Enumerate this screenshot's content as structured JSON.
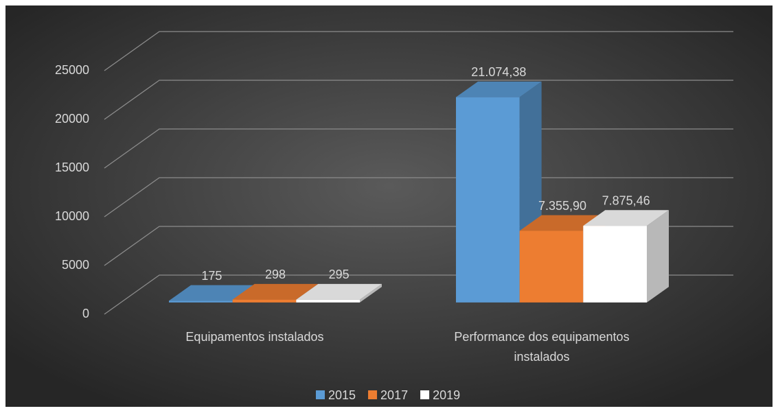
{
  "chart_data": {
    "type": "bar3d",
    "categories": [
      "Equipamentos instalados",
      "Performance dos equipamentos instalados"
    ],
    "series": [
      {
        "name": "2015",
        "color": "#5b9bd5",
        "values": [
          175,
          21074.38
        ],
        "value_labels": [
          "175",
          "21.074,38"
        ]
      },
      {
        "name": "2017",
        "color": "#ed7d31",
        "values": [
          298,
          7355.9
        ],
        "value_labels": [
          "298",
          "7.355,90"
        ]
      },
      {
        "name": "2019",
        "color": "#ffffff",
        "values": [
          295,
          7875.46
        ],
        "value_labels": [
          "295",
          "7.875,46"
        ]
      }
    ],
    "ylim": [
      0,
      25000
    ],
    "yticks": [
      0,
      5000,
      10000,
      15000,
      20000,
      25000
    ],
    "grid": true,
    "legend": "bottom"
  }
}
